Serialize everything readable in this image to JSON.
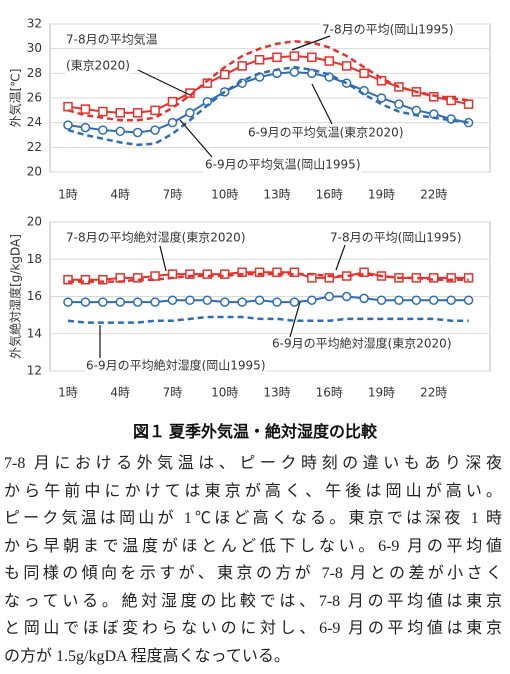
{
  "chart_data": [
    {
      "type": "line",
      "ylabel": "外気温[℃]",
      "categories": [
        "1時",
        null,
        null,
        "4時",
        null,
        null,
        "7時",
        null,
        null,
        "10時",
        null,
        null,
        "13時",
        null,
        null,
        "16時",
        null,
        null,
        "19時",
        null,
        null,
        "22時",
        null,
        null
      ],
      "ylim": [
        20,
        32
      ],
      "yticks": [
        20,
        22,
        24,
        26,
        28,
        30,
        32
      ],
      "grid": true,
      "series": [
        {
          "label_lines": [
            "7-8月の平均気温",
            "(東京2020)"
          ],
          "color": "#e5322d",
          "dashed": false,
          "marker": "square",
          "values": [
            25.3,
            25.1,
            24.9,
            24.8,
            24.8,
            25.0,
            25.7,
            26.4,
            27.2,
            27.9,
            28.6,
            29.1,
            29.3,
            29.4,
            29.3,
            29.0,
            28.6,
            28.0,
            27.4,
            26.9,
            26.5,
            26.1,
            25.8,
            25.5
          ]
        },
        {
          "label_lines": [
            "7-8月の平均(岡山1995)"
          ],
          "color": "#e5322d",
          "dashed": true,
          "marker": null,
          "values": [
            25.0,
            24.6,
            24.4,
            24.2,
            24.2,
            24.4,
            25.2,
            26.2,
            27.4,
            28.5,
            29.4,
            30.0,
            30.4,
            30.6,
            30.5,
            30.1,
            29.4,
            28.5,
            27.6,
            26.9,
            26.5,
            26.2,
            26.0,
            25.8
          ]
        },
        {
          "label_lines": [
            "6-9月の平均気温(東京2020)"
          ],
          "color": "#2e6db4",
          "dashed": false,
          "marker": "circle",
          "values": [
            23.8,
            23.6,
            23.4,
            23.3,
            23.2,
            23.4,
            24.0,
            24.8,
            25.7,
            26.5,
            27.2,
            27.7,
            28.0,
            28.1,
            28.0,
            27.7,
            27.2,
            26.6,
            26.0,
            25.5,
            25.0,
            24.7,
            24.3,
            24.0
          ]
        },
        {
          "label_lines": [
            "6-9月の平均気温(岡山1995)"
          ],
          "color": "#2e6db4",
          "dashed": true,
          "marker": null,
          "values": [
            23.4,
            23.0,
            22.7,
            22.4,
            22.2,
            22.3,
            23.1,
            24.2,
            25.4,
            26.5,
            27.4,
            28.0,
            28.3,
            28.5,
            28.3,
            27.9,
            27.2,
            26.3,
            25.5,
            24.9,
            24.6,
            24.4,
            24.2,
            24.0
          ]
        }
      ]
    },
    {
      "type": "line",
      "ylabel": "外気絶対湿度[g/kgDA]",
      "categories": [
        "1時",
        null,
        null,
        "4時",
        null,
        null,
        "7時",
        null,
        null,
        "10時",
        null,
        null,
        "13時",
        null,
        null,
        "16時",
        null,
        null,
        "19時",
        null,
        null,
        "22時",
        null,
        null
      ],
      "ylim": [
        12,
        20
      ],
      "yticks": [
        12,
        14,
        16,
        18,
        20
      ],
      "grid": true,
      "series": [
        {
          "label_lines": [
            "7-8月の平均絶対湿度(東京2020)"
          ],
          "color": "#e5322d",
          "dashed": false,
          "marker": "square",
          "values": [
            16.9,
            16.9,
            16.9,
            17.0,
            17.0,
            17.1,
            17.2,
            17.2,
            17.2,
            17.2,
            17.3,
            17.3,
            17.3,
            17.3,
            17.0,
            17.0,
            17.1,
            17.3,
            17.1,
            17.0,
            17.0,
            17.0,
            17.0,
            17.0
          ]
        },
        {
          "label_lines": [
            "7-8月の平均(岡山1995)"
          ],
          "color": "#e5322d",
          "dashed": true,
          "marker": null,
          "values": [
            16.8,
            16.8,
            16.8,
            16.8,
            16.9,
            16.9,
            17.0,
            17.1,
            17.1,
            17.1,
            17.2,
            17.2,
            17.2,
            17.2,
            17.2,
            17.1,
            17.1,
            17.2,
            17.1,
            17.0,
            17.0,
            16.9,
            16.9,
            16.9
          ]
        },
        {
          "label_lines": [
            "6-9月の平均絶対湿度(東京2020)"
          ],
          "color": "#2e6db4",
          "dashed": false,
          "marker": "circle",
          "values": [
            15.7,
            15.7,
            15.7,
            15.7,
            15.7,
            15.7,
            15.8,
            15.8,
            15.8,
            15.7,
            15.7,
            15.8,
            15.7,
            15.7,
            15.8,
            16.0,
            16.0,
            15.9,
            15.8,
            15.8,
            15.8,
            15.8,
            15.8,
            15.8
          ]
        },
        {
          "label_lines": [
            "6-9月の平均絶対湿度(岡山1995)"
          ],
          "color": "#2e6db4",
          "dashed": true,
          "marker": null,
          "values": [
            14.7,
            14.6,
            14.6,
            14.6,
            14.6,
            14.7,
            14.7,
            14.8,
            14.9,
            14.9,
            14.9,
            14.8,
            14.8,
            14.7,
            14.7,
            14.7,
            14.8,
            14.8,
            14.8,
            14.8,
            14.8,
            14.8,
            14.7,
            14.7
          ]
        }
      ]
    }
  ],
  "caption": "図１ 夏季外気温・絶対湿度の比較",
  "paragraph": {
    "lines": [
      "7-8 月における外気温は、ピーク時刻の違いもあり深夜",
      "から午前中にかけては東京が高く、午後は岡山が高い。",
      "ピーク気温は岡山が 1℃ほど高くなる。東京では深夜 1 時",
      "から早朝まで温度がほとんど低下しない。6-9 月の平均値",
      "も同様の傾向を示すが、東京の方が 7-8 月との差が小さく",
      "なっている。絶対湿度の比較では、7-8 月の平均値は東京",
      "と岡山でほぼ変わらないのに対し、6-9 月の平均値は東京",
      "の方が 1.5g/kgDA 程度高くなっている。"
    ]
  }
}
